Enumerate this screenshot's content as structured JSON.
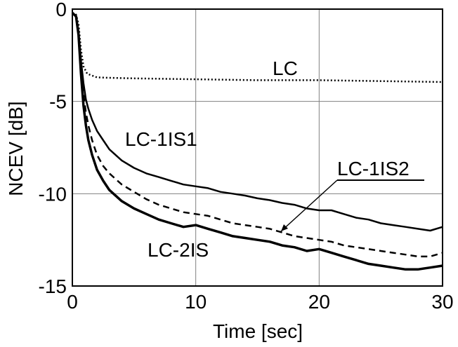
{
  "chart_data": {
    "type": "line",
    "title": "",
    "xlabel": "Time [sec]",
    "ylabel": "NCEV [dB]",
    "xlim": [
      0,
      30
    ],
    "ylim": [
      -15,
      0
    ],
    "xticks": [
      0,
      10,
      20,
      30
    ],
    "xtick_labels": [
      "0",
      "10",
      "20",
      "30"
    ],
    "yticks": [
      0,
      -5,
      -10,
      -15
    ],
    "ytick_labels": [
      "0",
      "-5",
      "-10",
      "-15"
    ],
    "grid": true,
    "legend": "none",
    "colors": {
      "lines": "#000000",
      "grid": "#808080"
    },
    "series": [
      {
        "name": "LC",
        "style": "dotted",
        "x": [
          0,
          0.3,
          0.5,
          0.7,
          0.9,
          1.2,
          1.6,
          2,
          3,
          5,
          10,
          15,
          20,
          25,
          30
        ],
        "y": [
          -0.2,
          -0.3,
          -0.8,
          -2.2,
          -3.1,
          -3.5,
          -3.6,
          -3.7,
          -3.72,
          -3.75,
          -3.8,
          -3.85,
          -3.85,
          -3.9,
          -3.95
        ]
      },
      {
        "name": "LC-1IS1",
        "style": "solid",
        "x": [
          0,
          0.3,
          0.5,
          0.7,
          0.9,
          1.1,
          1.3,
          1.6,
          2,
          2.5,
          3,
          4,
          5,
          6,
          7,
          8,
          9,
          10,
          11,
          12,
          13,
          14,
          15,
          16,
          17,
          18,
          19,
          20,
          21,
          22,
          23,
          24,
          25,
          26,
          27,
          28,
          29,
          30
        ],
        "y": [
          -0.2,
          -0.4,
          -1.2,
          -2.8,
          -4,
          -4.9,
          -5.4,
          -6,
          -6.6,
          -7.1,
          -7.6,
          -8.2,
          -8.6,
          -8.9,
          -9.1,
          -9.3,
          -9.5,
          -9.6,
          -9.7,
          -9.9,
          -10.0,
          -10.1,
          -10.25,
          -10.35,
          -10.5,
          -10.6,
          -10.8,
          -10.9,
          -10.9,
          -11.1,
          -11.3,
          -11.4,
          -11.6,
          -11.7,
          -11.8,
          -11.9,
          -12.0,
          -11.8
        ]
      },
      {
        "name": "LC-1IS2",
        "style": "dashed",
        "x": [
          0,
          0.3,
          0.5,
          0.7,
          0.9,
          1.1,
          1.3,
          1.6,
          2,
          2.5,
          3,
          4,
          5,
          6,
          7,
          8,
          9,
          10,
          11,
          12,
          13,
          14,
          15,
          16,
          17,
          18,
          19,
          20,
          21,
          22,
          23,
          24,
          25,
          26,
          27,
          28,
          29,
          30
        ],
        "y": [
          -0.2,
          -0.4,
          -1.3,
          -3.2,
          -4.6,
          -5.6,
          -6.3,
          -7.1,
          -7.9,
          -8.5,
          -8.9,
          -9.5,
          -9.9,
          -10.3,
          -10.6,
          -10.8,
          -11.0,
          -11.1,
          -11.2,
          -11.4,
          -11.6,
          -11.7,
          -11.8,
          -11.9,
          -12.1,
          -12.3,
          -12.4,
          -12.5,
          -12.6,
          -12.8,
          -12.9,
          -13.0,
          -13.1,
          -13.2,
          -13.3,
          -13.4,
          -13.4,
          -13.2
        ]
      },
      {
        "name": "LC-2IS",
        "style": "solid-bold",
        "x": [
          0,
          0.3,
          0.5,
          0.7,
          0.9,
          1.1,
          1.3,
          1.6,
          2,
          2.5,
          3,
          4,
          5,
          6,
          7,
          8,
          9,
          10,
          11,
          12,
          13,
          14,
          15,
          16,
          17,
          18,
          19,
          20,
          21,
          22,
          23,
          24,
          25,
          26,
          27,
          28,
          29,
          30
        ],
        "y": [
          -0.2,
          -0.4,
          -1.4,
          -3.5,
          -5.2,
          -6.3,
          -7.1,
          -7.9,
          -8.7,
          -9.3,
          -9.8,
          -10.4,
          -10.8,
          -11.1,
          -11.4,
          -11.6,
          -11.8,
          -11.7,
          -11.9,
          -12.1,
          -12.3,
          -12.4,
          -12.5,
          -12.6,
          -12.8,
          -12.9,
          -13.1,
          -13.0,
          -13.2,
          -13.4,
          -13.6,
          -13.8,
          -13.9,
          -14.0,
          -14.1,
          -14.1,
          -14.0,
          -13.9
        ]
      }
    ],
    "annotations": [
      {
        "text": "LC"
      },
      {
        "text": "LC-1IS1"
      },
      {
        "text": "LC-1IS2"
      },
      {
        "text": "LC-2IS"
      }
    ]
  }
}
